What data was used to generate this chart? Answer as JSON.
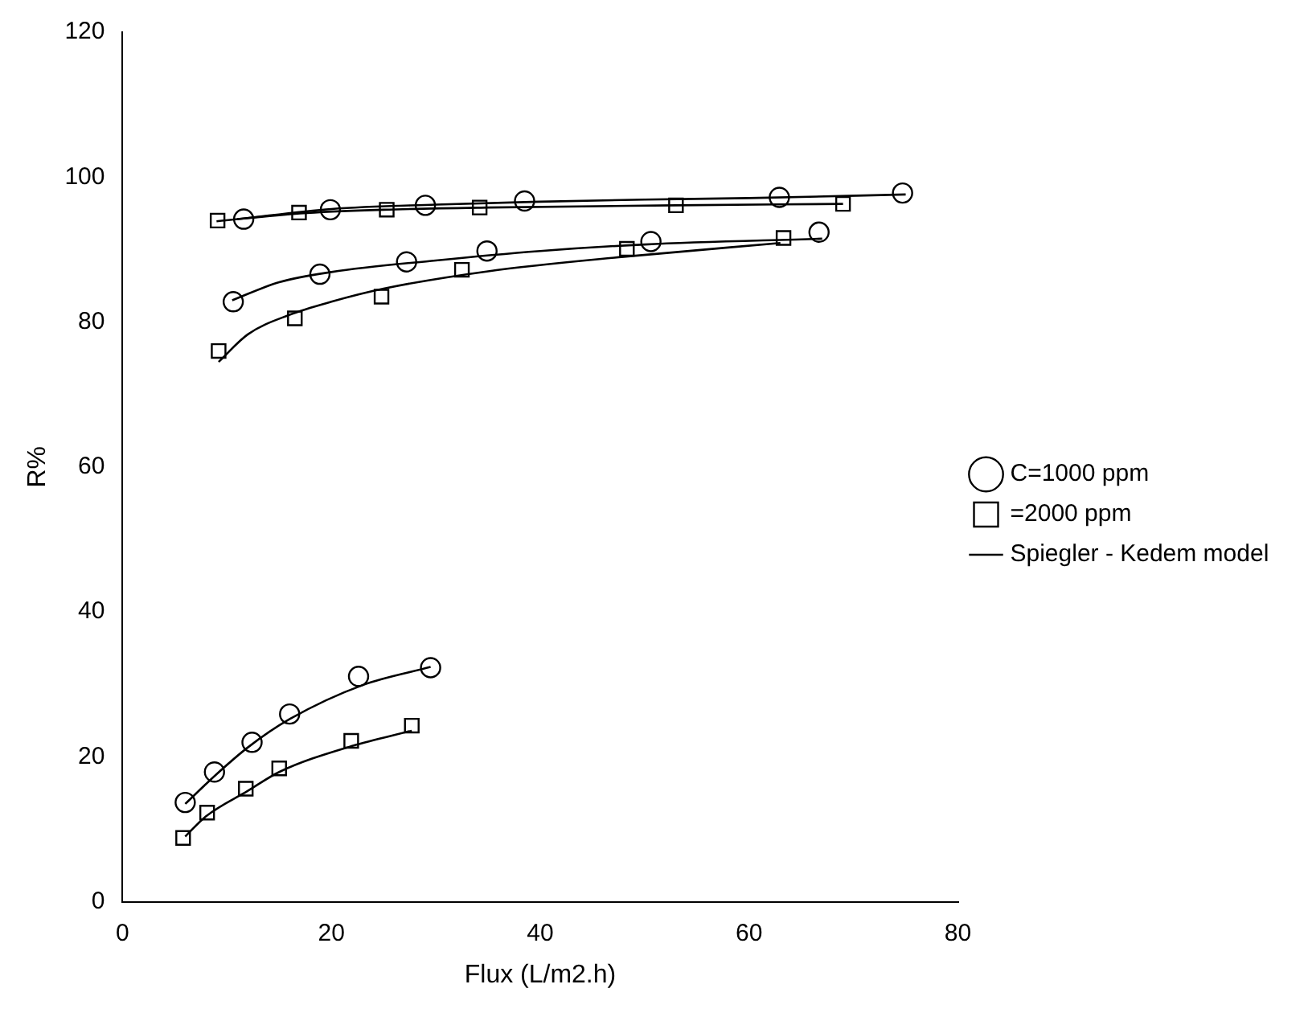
{
  "chart_data": {
    "type": "scatter",
    "xlabel": "Flux (L/m2.h)",
    "ylabel": "R%",
    "xlim": [
      0,
      80
    ],
    "xticks": [
      0,
      20,
      40,
      60,
      80
    ],
    "ylim": [
      0,
      120
    ],
    "yticks": [
      0,
      20,
      40,
      60,
      80,
      100,
      120
    ],
    "grid": false,
    "legend": "right",
    "series": [
      {
        "type": "line",
        "name": "Spiegler - Kedem model",
        "color": "#000000",
        "marker": "none",
        "x": [
          11,
          20,
          30,
          40,
          50,
          60,
          75
        ],
        "values": [
          94.2,
          95.6,
          96.2,
          96.6,
          96.9,
          97.1,
          97.6
        ]
      },
      {
        "type": "line",
        "color": "#000000",
        "marker": "none",
        "x": [
          9,
          17,
          25,
          35,
          53,
          69
        ],
        "values": [
          93.9,
          95.0,
          95.5,
          95.8,
          96.1,
          96.3
        ]
      },
      {
        "type": "line",
        "color": "#000000",
        "marker": "none",
        "x": [
          10.5,
          15,
          20,
          30,
          40,
          50,
          67
        ],
        "values": [
          83,
          85.5,
          86.9,
          88.5,
          89.8,
          90.7,
          91.5
        ]
      },
      {
        "type": "line",
        "color": "#000000",
        "marker": "none",
        "x": [
          9.2,
          12,
          16,
          20,
          25,
          35,
          48,
          63
        ],
        "values": [
          74.5,
          78.3,
          81.0,
          82.8,
          84.6,
          87.0,
          89.0,
          90.9
        ]
      },
      {
        "type": "line",
        "color": "#000000",
        "marker": "none",
        "x": [
          6,
          9,
          12,
          16,
          23,
          29.5
        ],
        "values": [
          13.5,
          17.6,
          21.3,
          25.2,
          29.9,
          32.4
        ]
      },
      {
        "type": "line",
        "color": "#000000",
        "marker": "none",
        "x": [
          6,
          8,
          12,
          15,
          22,
          27.7
        ],
        "values": [
          9,
          11.8,
          15.3,
          17.9,
          21.5,
          23.6
        ]
      },
      {
        "name": "C=1000 ppm",
        "color": "#000000",
        "marker": "circle",
        "x": [
          11.6,
          19.9,
          29.0,
          38.5,
          62.9,
          74.7
        ],
        "values": [
          94.2,
          95.5,
          96.1,
          96.7,
          97.2,
          97.8
        ]
      },
      {
        "name": "=2000 ppm",
        "color": "#000000",
        "marker": "square",
        "x": [
          9.1,
          16.9,
          25.3,
          34.2,
          53.0,
          69.0
        ],
        "values": [
          94.0,
          95.1,
          95.5,
          95.8,
          96.1,
          96.3
        ]
      },
      {
        "color": "#000000",
        "marker": "circle",
        "x": [
          10.6,
          18.9,
          27.2,
          34.9,
          50.6,
          66.7
        ],
        "values": [
          82.8,
          86.6,
          88.3,
          89.8,
          91.1,
          92.4
        ]
      },
      {
        "color": "#000000",
        "marker": "square",
        "x": [
          9.2,
          16.5,
          24.8,
          32.5,
          48.3,
          63.3
        ],
        "values": [
          76.0,
          80.5,
          83.5,
          87.2,
          90.1,
          91.6
        ]
      },
      {
        "color": "#000000",
        "marker": "circle",
        "x": [
          6.0,
          8.8,
          12.4,
          16.0,
          22.6,
          29.5
        ],
        "values": [
          13.7,
          17.9,
          22.0,
          25.9,
          31.1,
          32.3
        ]
      },
      {
        "color": "#000000",
        "marker": "square",
        "x": [
          5.8,
          8.1,
          11.8,
          15.0,
          21.9,
          27.7
        ],
        "values": [
          8.8,
          12.3,
          15.6,
          18.4,
          22.2,
          24.3
        ]
      }
    ]
  }
}
